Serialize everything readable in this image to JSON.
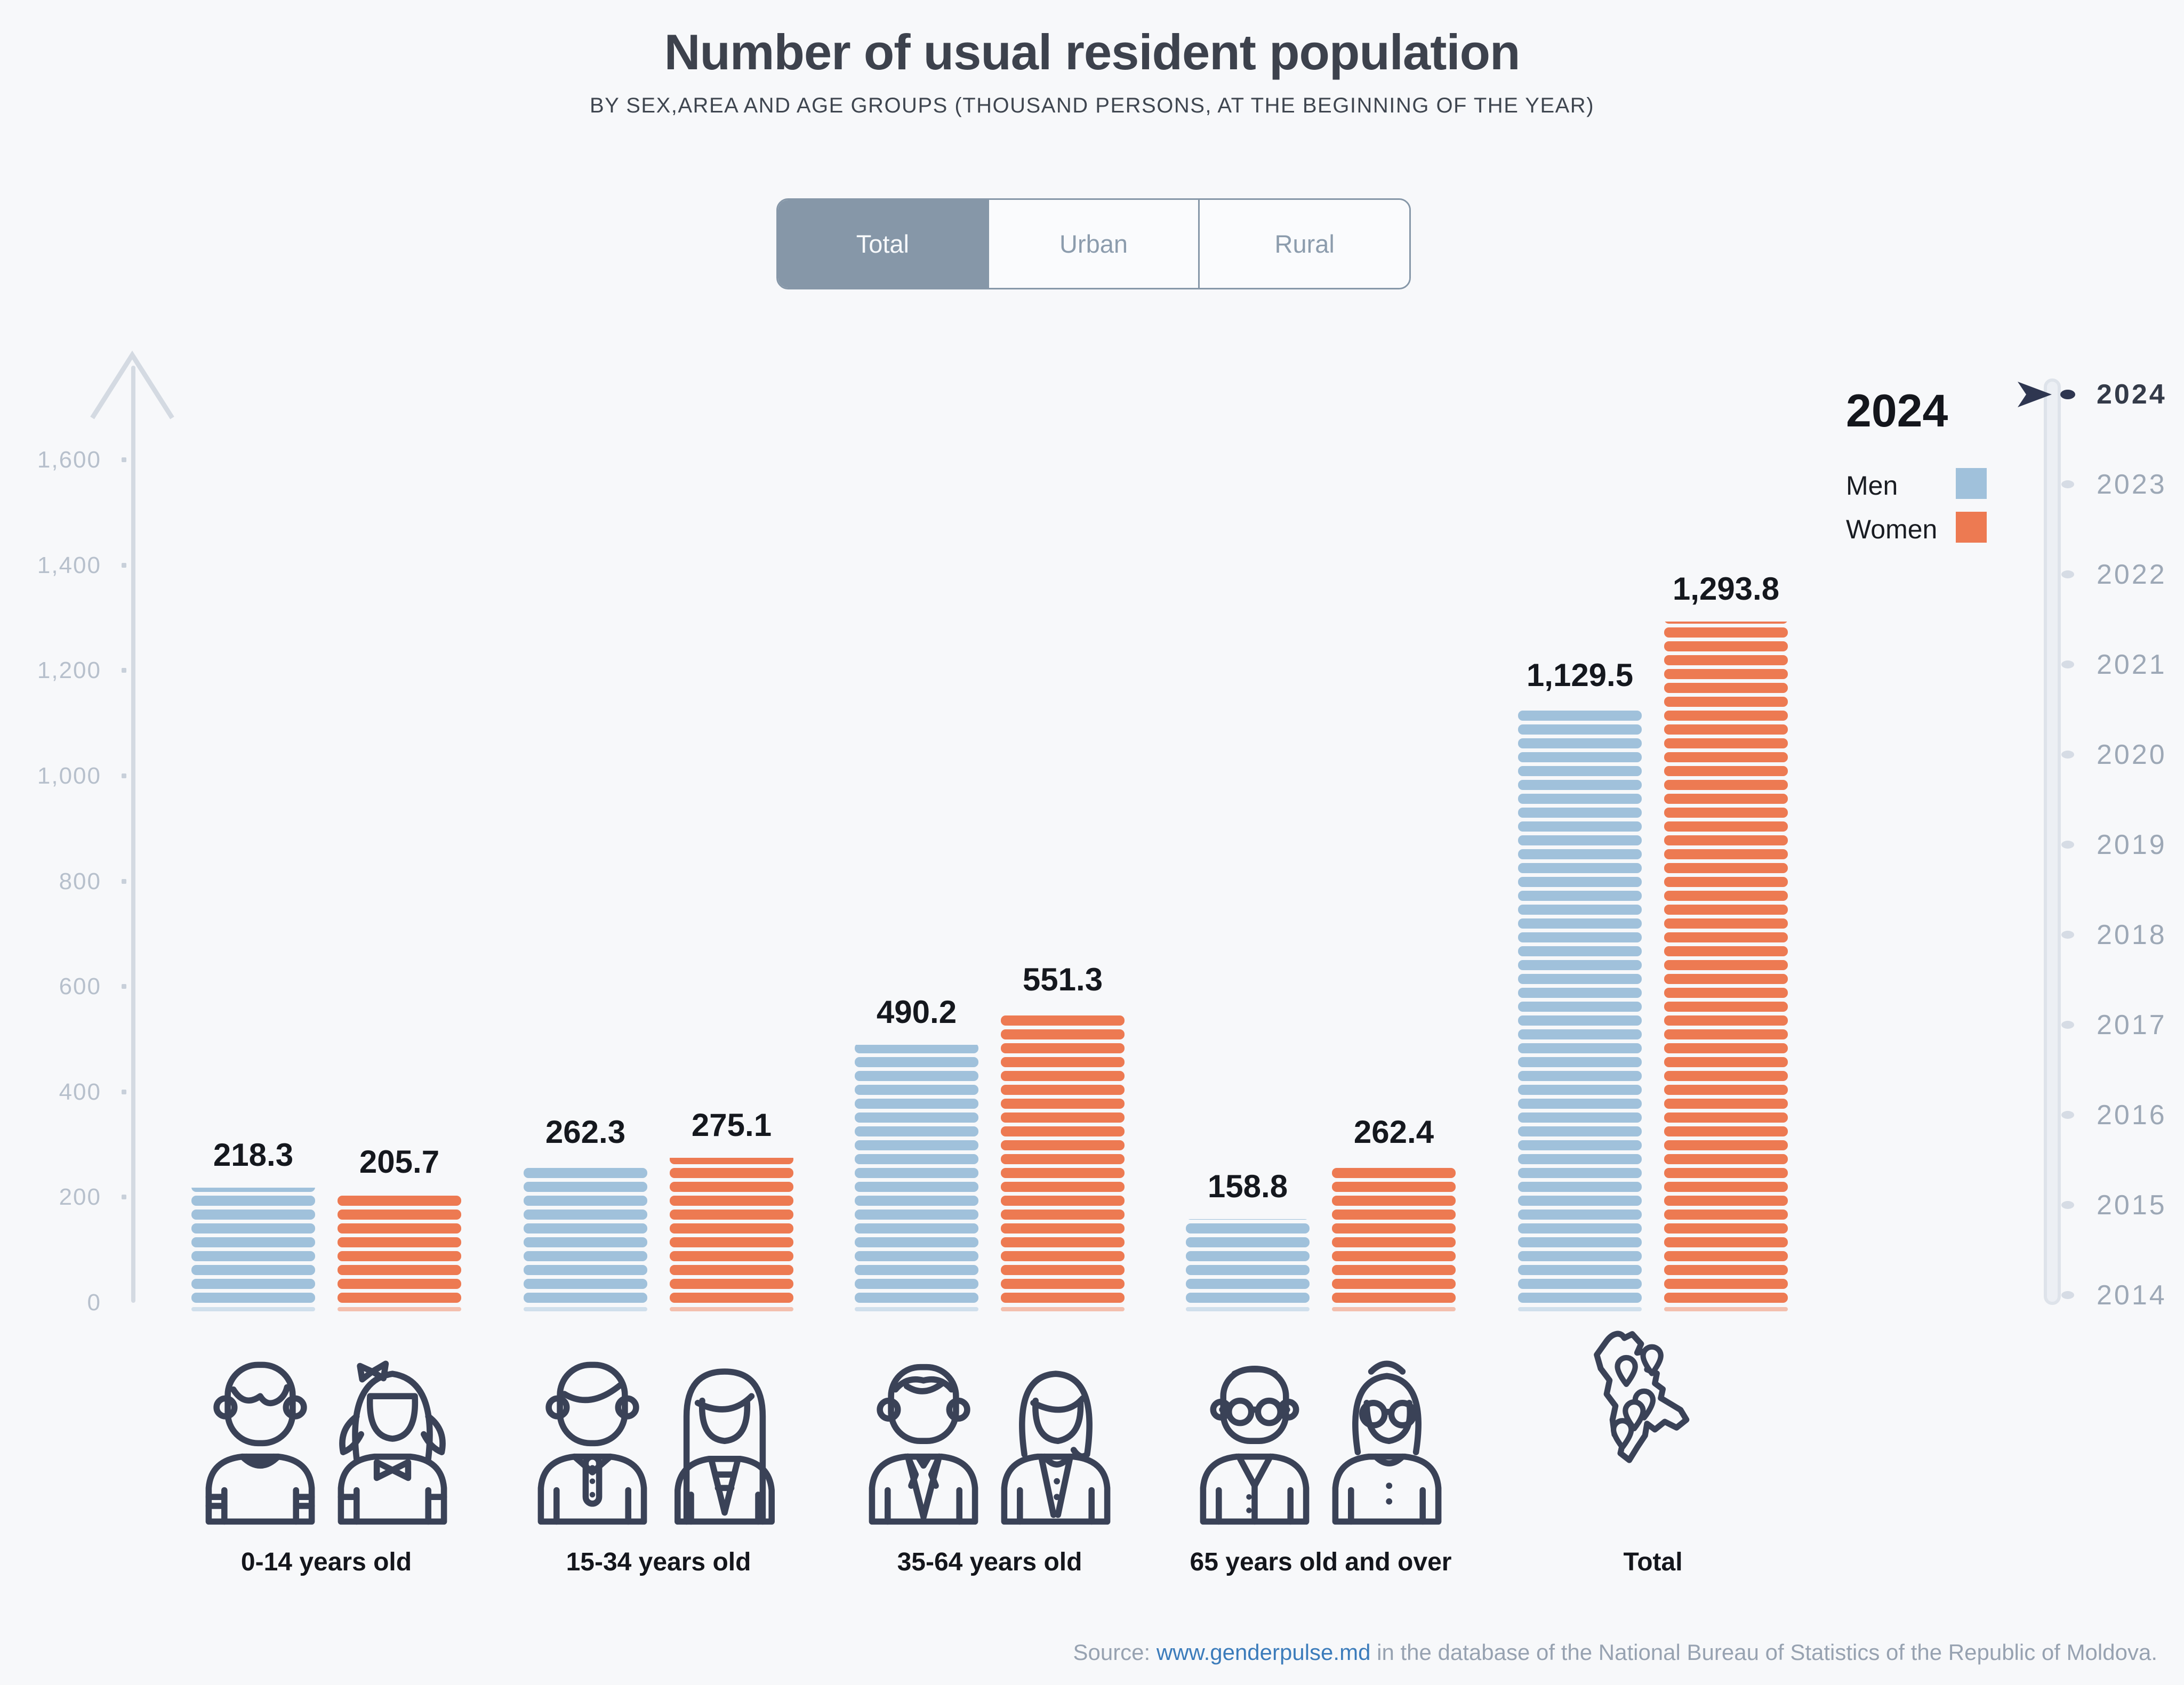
{
  "header": {
    "title": "Number of usual resident population",
    "subtitle": "BY SEX,AREA AND AGE GROUPS (THOUSAND PERSONS, AT THE BEGINNING OF THE YEAR)"
  },
  "tabs": [
    {
      "label": "Total",
      "active": true
    },
    {
      "label": "Urban",
      "active": false
    },
    {
      "label": "Rural",
      "active": false
    }
  ],
  "legend": {
    "year": "2024",
    "items": [
      {
        "label": "Men",
        "color": "#A0C1DB"
      },
      {
        "label": "Women",
        "color": "#ED7A52"
      }
    ]
  },
  "timeline": {
    "selected": "2024",
    "years": [
      "2024",
      "2023",
      "2022",
      "2021",
      "2020",
      "2019",
      "2018",
      "2017",
      "2016",
      "2015",
      "2014"
    ]
  },
  "chart_data": {
    "type": "bar",
    "title": "Number of usual resident population",
    "subtitle": "By sex, area and age groups (thousand persons, at the beginning of the year)",
    "categories": [
      "0-14 years old",
      "15-34 years old",
      "35-64 years old",
      "65 years old and over",
      "Total"
    ],
    "series": [
      {
        "name": "Men",
        "color": "#A0C1DB",
        "values": [
          218.3,
          262.3,
          490.2,
          158.8,
          1129.5
        ]
      },
      {
        "name": "Women",
        "color": "#ED7A52",
        "values": [
          205.7,
          275.1,
          551.3,
          262.4,
          1293.8
        ]
      }
    ],
    "value_labels": [
      [
        "218.3",
        "262.3",
        "490.2",
        "158.8",
        "1,129.5"
      ],
      [
        "205.7",
        "275.1",
        "551.3",
        "262.4",
        "1,293.8"
      ]
    ],
    "ylim": [
      0,
      1600
    ],
    "yticks": [
      "0",
      "200",
      "400",
      "600",
      "800",
      "1,000",
      "1,200",
      "1,400",
      "1,600"
    ],
    "grid": false,
    "legend_position": "top-right",
    "unit": "thousand persons"
  },
  "groups": [
    {
      "label": "0-14 years old",
      "icons": [
        "boy-icon",
        "girl-icon"
      ]
    },
    {
      "label": "15-34 years old",
      "icons": [
        "young-man-icon",
        "young-woman-icon"
      ]
    },
    {
      "label": "35-64 years old",
      "icons": [
        "adult-man-icon",
        "adult-woman-icon"
      ]
    },
    {
      "label": "65 years old and over",
      "icons": [
        "old-man-icon",
        "old-woman-icon"
      ]
    },
    {
      "label": "Total",
      "icons": [
        "moldova-map-icon"
      ]
    }
  ],
  "source": {
    "prefix": "Source: ",
    "link": "www.genderpulse.md",
    "suffix": " in the database of the National Bureau of Statistics of the Republic of Moldova."
  }
}
